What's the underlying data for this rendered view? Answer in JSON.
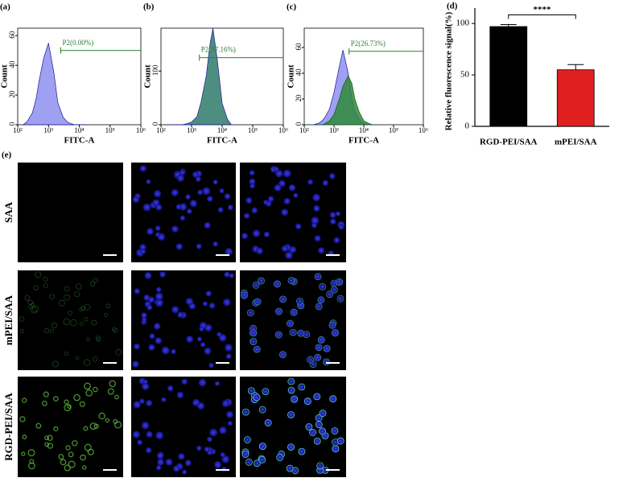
{
  "chart_data": [
    {
      "type": "area",
      "panel_label": "(a)",
      "xlabel": "FITC-A",
      "ylabel": "Count",
      "xlog": true,
      "xlim": [
        100,
        1000000
      ],
      "xticks": [
        {
          "value": 100,
          "label": "10²"
        },
        {
          "value": 1000,
          "label": "10³"
        },
        {
          "value": 10000,
          "label": "10⁴"
        },
        {
          "value": 100000,
          "label": "10⁵"
        },
        {
          "value": 1000000,
          "label": "10⁶"
        }
      ],
      "ylim": [
        0,
        65
      ],
      "yticks": [
        0,
        20,
        40,
        60
      ],
      "x": [
        150,
        200,
        300,
        400,
        500,
        700,
        1000,
        1500,
        2000,
        3000,
        4000,
        5000,
        7000,
        10000,
        15000,
        20000
      ],
      "series": [
        {
          "color": "#8f8ff0",
          "values": [
            0,
            2,
            8,
            18,
            30,
            45,
            55,
            35,
            15,
            5,
            2,
            1,
            0,
            0,
            0,
            0
          ]
        }
      ],
      "gate_label": "P2(0.00%)",
      "gate_x": [
        2500,
        1000000
      ],
      "gate_y": 50,
      "gate_color": "#2e7d32"
    },
    {
      "type": "area",
      "panel_label": "(b)",
      "xlabel": "FITC-A",
      "ylabel": "Count",
      "xlog": true,
      "xlim": [
        100,
        1000000
      ],
      "xticks": [
        {
          "value": 100,
          "label": "10²"
        },
        {
          "value": 1000,
          "label": "10³"
        },
        {
          "value": 10000,
          "label": "10⁴"
        },
        {
          "value": 100000,
          "label": "10⁵"
        },
        {
          "value": 1000000,
          "label": "10⁶"
        }
      ],
      "ylim": [
        0,
        180
      ],
      "yticks": [
        0,
        100
      ],
      "x": [
        150,
        200,
        300,
        400,
        500,
        700,
        1000,
        1500,
        2000,
        3000,
        4000,
        5000,
        7000,
        10000,
        15000,
        20000
      ],
      "series": [
        {
          "color": "#2f7a6a",
          "values": [
            0,
            0,
            0,
            0,
            0,
            2,
            5,
            15,
            40,
            90,
            150,
            180,
            120,
            40,
            10,
            0
          ]
        }
      ],
      "gate_label": "P2(97.16%)",
      "gate_x": [
        1800,
        1000000
      ],
      "gate_y": 125,
      "gate_color": "#2e7d32"
    },
    {
      "type": "area",
      "panel_label": "(c)",
      "xlabel": "FITC-A",
      "ylabel": "Count",
      "xlog": true,
      "xlim": [
        100,
        1000000
      ],
      "xticks": [
        {
          "value": 100,
          "label": "10²"
        },
        {
          "value": 1000,
          "label": "10³"
        },
        {
          "value": 10000,
          "label": "10⁴"
        },
        {
          "value": 100000,
          "label": "10⁵"
        },
        {
          "value": 1000000,
          "label": "10⁶"
        }
      ],
      "ylim": [
        0,
        75
      ],
      "yticks": [
        0,
        20,
        40,
        60
      ],
      "x": [
        150,
        200,
        300,
        400,
        500,
        700,
        1000,
        1500,
        2000,
        3000,
        4000,
        5000,
        7000,
        10000,
        15000,
        20000
      ],
      "series": [
        {
          "color": "#8f8ff0",
          "values": [
            0,
            0,
            1,
            3,
            6,
            12,
            25,
            45,
            58,
            40,
            20,
            10,
            4,
            1,
            0,
            0
          ]
        },
        {
          "color": "#2f8a3a",
          "values": [
            0,
            0,
            0,
            0,
            1,
            3,
            8,
            20,
            30,
            38,
            32,
            20,
            10,
            3,
            1,
            0
          ]
        }
      ],
      "gate_label": "P2(26.73%)",
      "gate_x": [
        3200,
        1000000
      ],
      "gate_y": 57,
      "gate_color": "#2e7d32"
    },
    {
      "type": "bar",
      "panel_label": "(d)",
      "ylabel": "Relative fluorescence signal(%)",
      "categories": [
        "RGD-PEI/SAA",
        "mPEI/SAA"
      ],
      "values": [
        97,
        55
      ],
      "errors": [
        2,
        5
      ],
      "colors": [
        "#000000",
        "#e02020"
      ],
      "ylim": [
        0,
        115
      ],
      "yticks": [
        0,
        50,
        100
      ],
      "annotation": "****"
    }
  ],
  "panel_e": {
    "label": "(e)",
    "rows": [
      "SAA",
      "mPEI/SAA",
      "RGD-PEI/SAA"
    ]
  }
}
